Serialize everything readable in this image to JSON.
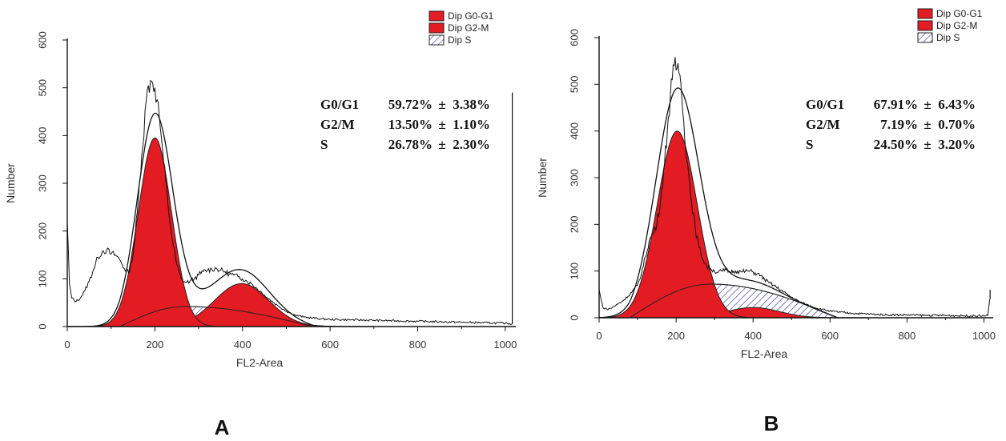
{
  "chart_data": [
    {
      "type": "area",
      "panel_label": "A",
      "xlabel": "FL2-Area",
      "ylabel": "Number",
      "xlim": [
        0,
        1024
      ],
      "ylim": [
        0,
        600
      ],
      "x_ticks": [
        0,
        200,
        400,
        600,
        800,
        1000
      ],
      "y_ticks": [
        0,
        100,
        200,
        300,
        400,
        500,
        600
      ],
      "legend_position": "top-right",
      "legend": [
        {
          "label": "Dip G0-G1",
          "color": "#e31b23",
          "pattern": "solid"
        },
        {
          "label": "Dip G2-M",
          "color": "#e31b23",
          "pattern": "solid"
        },
        {
          "label": "Dip S",
          "color": "#3a3aa0",
          "pattern": "hatch"
        }
      ],
      "stats": [
        {
          "phase": "G0/G1",
          "value": "59.72%",
          "pm": "±",
          "error": "3.38%"
        },
        {
          "phase": "G2/M",
          "value": "13.50%",
          "pm": "±",
          "error": "1.10%"
        },
        {
          "phase": "S",
          "value": "26.78%",
          "pm": "±",
          "error": "2.30%"
        }
      ],
      "g1_peak": {
        "center": 200,
        "sigma": 38,
        "height": 395
      },
      "g2_peak": {
        "center": 398,
        "sigma": 62,
        "height": 90
      },
      "s_phase": {
        "start": 120,
        "peak_x": 270,
        "end": 560,
        "height": 42
      },
      "fit_total_peak": 418,
      "histogram": {
        "x": [
          0,
          5,
          10,
          20,
          30,
          40,
          50,
          60,
          70,
          80,
          90,
          100,
          110,
          120,
          130,
          140,
          150,
          160,
          170,
          180,
          185,
          190,
          195,
          200,
          205,
          210,
          215,
          220,
          230,
          240,
          250,
          260,
          270,
          280,
          290,
          300,
          310,
          320,
          330,
          340,
          350,
          360,
          370,
          380,
          390,
          400,
          410,
          420,
          430,
          440,
          450,
          460,
          480,
          500,
          520,
          540,
          560,
          580,
          600,
          650,
          700,
          750,
          800,
          850,
          900,
          950,
          1000,
          1010,
          1015
        ],
        "y": [
          220,
          90,
          60,
          52,
          60,
          75,
          95,
          120,
          145,
          158,
          160,
          152,
          150,
          140,
          122,
          112,
          150,
          240,
          360,
          470,
          505,
          515,
          510,
          500,
          475,
          440,
          395,
          345,
          255,
          180,
          130,
          100,
          92,
          95,
          100,
          108,
          115,
          118,
          120,
          122,
          118,
          115,
          110,
          108,
          104,
          100,
          95,
          90,
          82,
          74,
          66,
          58,
          44,
          32,
          24,
          20,
          18,
          16,
          15,
          14,
          13,
          12,
          11,
          10,
          9,
          8,
          7,
          6,
          5
        ]
      }
    },
    {
      "type": "area",
      "panel_label": "B",
      "xlabel": "FL2-Area",
      "ylabel": "Number",
      "xlim": [
        0,
        1024
      ],
      "ylim": [
        0,
        600
      ],
      "x_ticks": [
        0,
        200,
        400,
        600,
        800,
        1000
      ],
      "y_ticks": [
        0,
        100,
        200,
        300,
        400,
        500,
        600
      ],
      "legend_position": "top-right",
      "legend": [
        {
          "label": "Dip G0-G1",
          "color": "#e31b23",
          "pattern": "solid"
        },
        {
          "label": "Dip G2-M",
          "color": "#e31b23",
          "pattern": "solid"
        },
        {
          "label": "Dip S",
          "color": "#3a3aa0",
          "pattern": "hatch"
        }
      ],
      "stats": [
        {
          "phase": "G0/G1",
          "value": "67.91%",
          "pm": "±",
          "error": "6.43%"
        },
        {
          "phase": "G2/M",
          "value": "7.19%",
          "pm": "±",
          "error": "0.70%"
        },
        {
          "phase": "S",
          "value": "24.50%",
          "pm": "±",
          "error": "3.20%"
        }
      ],
      "g1_peak": {
        "center": 203,
        "sigma": 52,
        "height": 400
      },
      "g2_peak": {
        "center": 400,
        "sigma": 68,
        "height": 22
      },
      "s_phase": {
        "start": 80,
        "peak_x": 290,
        "end": 620,
        "height": 72
      },
      "fit_total_peak": 440,
      "histogram": {
        "x": [
          0,
          5,
          10,
          20,
          30,
          40,
          60,
          80,
          100,
          110,
          120,
          130,
          140,
          150,
          160,
          170,
          180,
          190,
          195,
          200,
          205,
          210,
          215,
          220,
          230,
          240,
          250,
          260,
          270,
          280,
          290,
          300,
          310,
          320,
          330,
          340,
          350,
          360,
          370,
          380,
          390,
          400,
          410,
          420,
          430,
          440,
          460,
          480,
          500,
          520,
          540,
          560,
          580,
          600,
          650,
          700,
          750,
          800,
          850,
          900,
          950,
          1000,
          1010,
          1015
        ],
        "y": [
          60,
          40,
          22,
          18,
          20,
          25,
          35,
          50,
          70,
          95,
          130,
          165,
          180,
          200,
          255,
          330,
          430,
          510,
          540,
          530,
          545,
          520,
          470,
          420,
          330,
          250,
          190,
          150,
          125,
          110,
          105,
          100,
          98,
          100,
          102,
          98,
          100,
          100,
          98,
          100,
          100,
          98,
          94,
          90,
          82,
          76,
          66,
          55,
          44,
          35,
          28,
          22,
          18,
          14,
          10,
          8,
          6,
          6,
          5,
          5,
          4,
          4,
          5,
          40
        ]
      }
    }
  ]
}
